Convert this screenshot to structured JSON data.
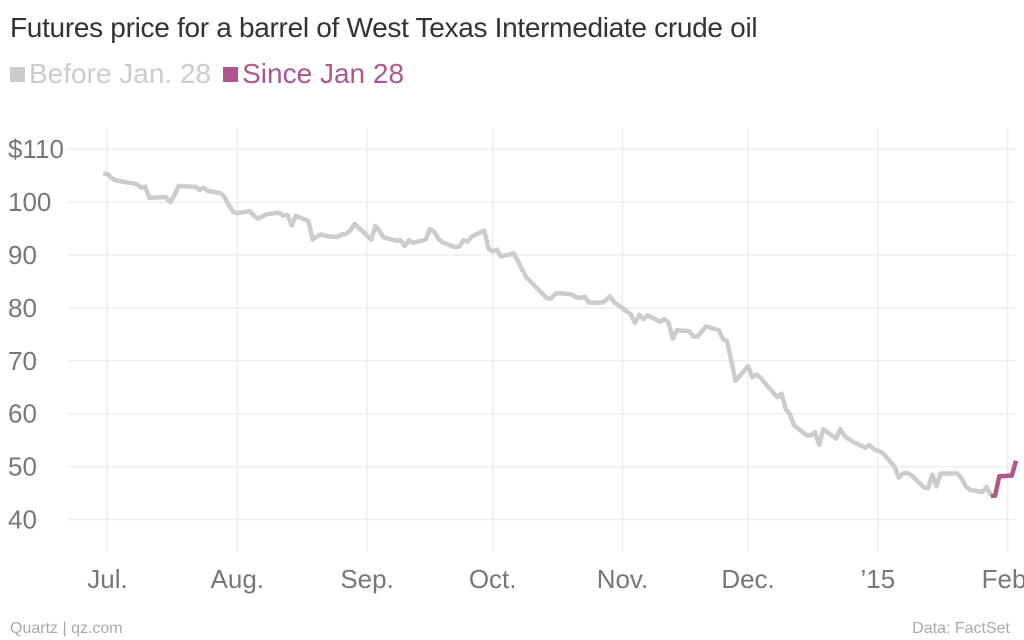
{
  "chart_data": {
    "type": "line",
    "title": "Futures price for a barrel of West Texas Intermediate crude oil",
    "legend": "top-left",
    "grid": true,
    "yticks": [
      {
        "label": "$110",
        "value": 110
      },
      {
        "label": "100",
        "value": 100
      },
      {
        "label": "90",
        "value": 90
      },
      {
        "label": "80",
        "value": 80
      },
      {
        "label": "70",
        "value": 70
      },
      {
        "label": "60",
        "value": 60
      },
      {
        "label": "50",
        "value": 50
      },
      {
        "label": "40",
        "value": 40
      }
    ],
    "ylim": [
      35,
      114
    ],
    "xlim": [
      "2014-06-23",
      "2015-02-03"
    ],
    "xticks": [
      {
        "label": "Jul.",
        "date": "2014-07-01"
      },
      {
        "label": "Aug.",
        "date": "2014-08-01"
      },
      {
        "label": "Sep.",
        "date": "2014-09-01"
      },
      {
        "label": "Oct.",
        "date": "2014-10-01"
      },
      {
        "label": "Nov.",
        "date": "2014-11-01"
      },
      {
        "label": "Dec.",
        "date": "2014-12-01"
      },
      {
        "label": "’15",
        "date": "2015-01-01"
      },
      {
        "label": "Feb.",
        "date": "2015-02-01"
      }
    ],
    "series": [
      {
        "name": "Before Jan. 28",
        "color": "#cccccc",
        "points": [
          [
            "2014-06-30",
            105.4
          ],
          [
            "2014-07-01",
            105.3
          ],
          [
            "2014-07-02",
            104.5
          ],
          [
            "2014-07-03",
            104.1
          ],
          [
            "2014-07-08",
            103.4
          ],
          [
            "2014-07-09",
            102.7
          ],
          [
            "2014-07-10",
            102.9
          ],
          [
            "2014-07-11",
            100.8
          ],
          [
            "2014-07-14",
            100.9
          ],
          [
            "2014-07-15",
            100.9
          ],
          [
            "2014-07-16",
            100.0
          ],
          [
            "2014-07-17",
            101.3
          ],
          [
            "2014-07-18",
            103.1
          ],
          [
            "2014-07-21",
            102.9
          ],
          [
            "2014-07-22",
            102.9
          ],
          [
            "2014-07-23",
            102.3
          ],
          [
            "2014-07-24",
            102.7
          ],
          [
            "2014-07-25",
            102.1
          ],
          [
            "2014-07-28",
            101.7
          ],
          [
            "2014-07-29",
            100.9
          ],
          [
            "2014-07-30",
            99.4
          ],
          [
            "2014-07-31",
            98.2
          ],
          [
            "2014-08-01",
            97.9
          ],
          [
            "2014-08-04",
            98.3
          ],
          [
            "2014-08-05",
            97.4
          ],
          [
            "2014-08-06",
            96.9
          ],
          [
            "2014-08-07",
            97.3
          ],
          [
            "2014-08-08",
            97.7
          ],
          [
            "2014-08-11",
            98.0
          ],
          [
            "2014-08-12",
            97.4
          ],
          [
            "2014-08-13",
            97.6
          ],
          [
            "2014-08-14",
            95.6
          ],
          [
            "2014-08-15",
            97.4
          ],
          [
            "2014-08-18",
            96.4
          ],
          [
            "2014-08-19",
            92.9
          ],
          [
            "2014-08-20",
            93.5
          ],
          [
            "2014-08-21",
            93.9
          ],
          [
            "2014-08-22",
            93.6
          ],
          [
            "2014-08-25",
            93.4
          ],
          [
            "2014-08-26",
            93.9
          ],
          [
            "2014-08-27",
            94.0
          ],
          [
            "2014-08-28",
            94.6
          ],
          [
            "2014-08-29",
            95.9
          ],
          [
            "2014-09-02",
            92.9
          ],
          [
            "2014-09-03",
            95.5
          ],
          [
            "2014-09-04",
            94.5
          ],
          [
            "2014-09-05",
            93.3
          ],
          [
            "2014-09-08",
            92.7
          ],
          [
            "2014-09-09",
            92.8
          ],
          [
            "2014-09-10",
            91.7
          ],
          [
            "2014-09-11",
            92.8
          ],
          [
            "2014-09-12",
            92.3
          ],
          [
            "2014-09-15",
            92.9
          ],
          [
            "2014-09-16",
            94.9
          ],
          [
            "2014-09-17",
            94.4
          ],
          [
            "2014-09-18",
            93.1
          ],
          [
            "2014-09-19",
            92.4
          ],
          [
            "2014-09-22",
            91.5
          ],
          [
            "2014-09-23",
            91.6
          ],
          [
            "2014-09-24",
            92.8
          ],
          [
            "2014-09-25",
            92.5
          ],
          [
            "2014-09-26",
            93.5
          ],
          [
            "2014-09-29",
            94.6
          ],
          [
            "2014-09-30",
            91.2
          ],
          [
            "2014-10-01",
            90.7
          ],
          [
            "2014-10-02",
            91.0
          ],
          [
            "2014-10-03",
            89.7
          ],
          [
            "2014-10-06",
            90.3
          ],
          [
            "2014-10-07",
            88.9
          ],
          [
            "2014-10-08",
            87.3
          ],
          [
            "2014-10-09",
            85.8
          ],
          [
            "2014-10-14",
            81.8
          ],
          [
            "2014-10-15",
            81.8
          ],
          [
            "2014-10-16",
            82.7
          ],
          [
            "2014-10-17",
            82.8
          ],
          [
            "2014-10-20",
            82.5
          ],
          [
            "2014-10-21",
            82.0
          ],
          [
            "2014-10-22",
            81.9
          ],
          [
            "2014-10-23",
            82.1
          ],
          [
            "2014-10-24",
            81.0
          ],
          [
            "2014-10-27",
            81.0
          ],
          [
            "2014-10-28",
            81.4
          ],
          [
            "2014-10-29",
            82.2
          ],
          [
            "2014-10-30",
            81.1
          ],
          [
            "2014-10-31",
            80.5
          ],
          [
            "2014-11-03",
            78.8
          ],
          [
            "2014-11-04",
            77.2
          ],
          [
            "2014-11-05",
            78.7
          ],
          [
            "2014-11-06",
            77.9
          ],
          [
            "2014-11-07",
            78.6
          ],
          [
            "2014-11-10",
            77.4
          ],
          [
            "2014-11-11",
            77.9
          ],
          [
            "2014-11-12",
            77.2
          ],
          [
            "2014-11-13",
            74.2
          ],
          [
            "2014-11-14",
            75.8
          ],
          [
            "2014-11-17",
            75.6
          ],
          [
            "2014-11-18",
            74.6
          ],
          [
            "2014-11-19",
            74.6
          ],
          [
            "2014-11-20",
            75.6
          ],
          [
            "2014-11-21",
            76.5
          ],
          [
            "2014-11-24",
            75.8
          ],
          [
            "2014-11-25",
            74.1
          ],
          [
            "2014-11-26",
            73.7
          ],
          [
            "2014-11-28",
            66.2
          ],
          [
            "2014-12-01",
            69.0
          ],
          [
            "2014-12-02",
            66.9
          ],
          [
            "2014-12-03",
            67.4
          ],
          [
            "2014-12-04",
            66.8
          ],
          [
            "2014-12-05",
            65.8
          ],
          [
            "2014-12-08",
            63.1
          ],
          [
            "2014-12-09",
            63.8
          ],
          [
            "2014-12-10",
            60.9
          ],
          [
            "2014-12-11",
            59.9
          ],
          [
            "2014-12-12",
            57.8
          ],
          [
            "2014-12-15",
            55.9
          ],
          [
            "2014-12-16",
            55.9
          ],
          [
            "2014-12-17",
            56.5
          ],
          [
            "2014-12-18",
            54.1
          ],
          [
            "2014-12-19",
            57.1
          ],
          [
            "2014-12-22",
            55.3
          ],
          [
            "2014-12-23",
            57.1
          ],
          [
            "2014-12-24",
            55.8
          ],
          [
            "2014-12-26",
            54.7
          ],
          [
            "2014-12-29",
            53.6
          ],
          [
            "2014-12-30",
            54.1
          ],
          [
            "2014-12-31",
            53.3
          ],
          [
            "2015-01-02",
            52.7
          ],
          [
            "2015-01-05",
            50.0
          ],
          [
            "2015-01-06",
            47.9
          ],
          [
            "2015-01-07",
            48.7
          ],
          [
            "2015-01-08",
            48.8
          ],
          [
            "2015-01-09",
            48.4
          ],
          [
            "2015-01-12",
            46.1
          ],
          [
            "2015-01-13",
            45.9
          ],
          [
            "2015-01-14",
            48.5
          ],
          [
            "2015-01-15",
            46.3
          ],
          [
            "2015-01-16",
            48.7
          ],
          [
            "2015-01-20",
            48.7
          ],
          [
            "2015-01-21",
            47.8
          ],
          [
            "2015-01-22",
            46.3
          ],
          [
            "2015-01-23",
            45.6
          ],
          [
            "2015-01-26",
            45.2
          ],
          [
            "2015-01-27",
            46.2
          ],
          [
            "2015-01-28",
            44.5
          ]
        ]
      },
      {
        "name": "Since Jan 28",
        "color": "#b0568c",
        "points": [
          [
            "2015-01-28",
            44.5
          ],
          [
            "2015-01-29",
            44.5
          ],
          [
            "2015-01-30",
            48.2
          ],
          [
            "2015-02-02",
            48.3
          ],
          [
            "2015-02-03",
            51.1
          ]
        ]
      }
    ]
  },
  "footer": {
    "credit": "Quartz | qz.com",
    "source": "Data: FactSet"
  }
}
